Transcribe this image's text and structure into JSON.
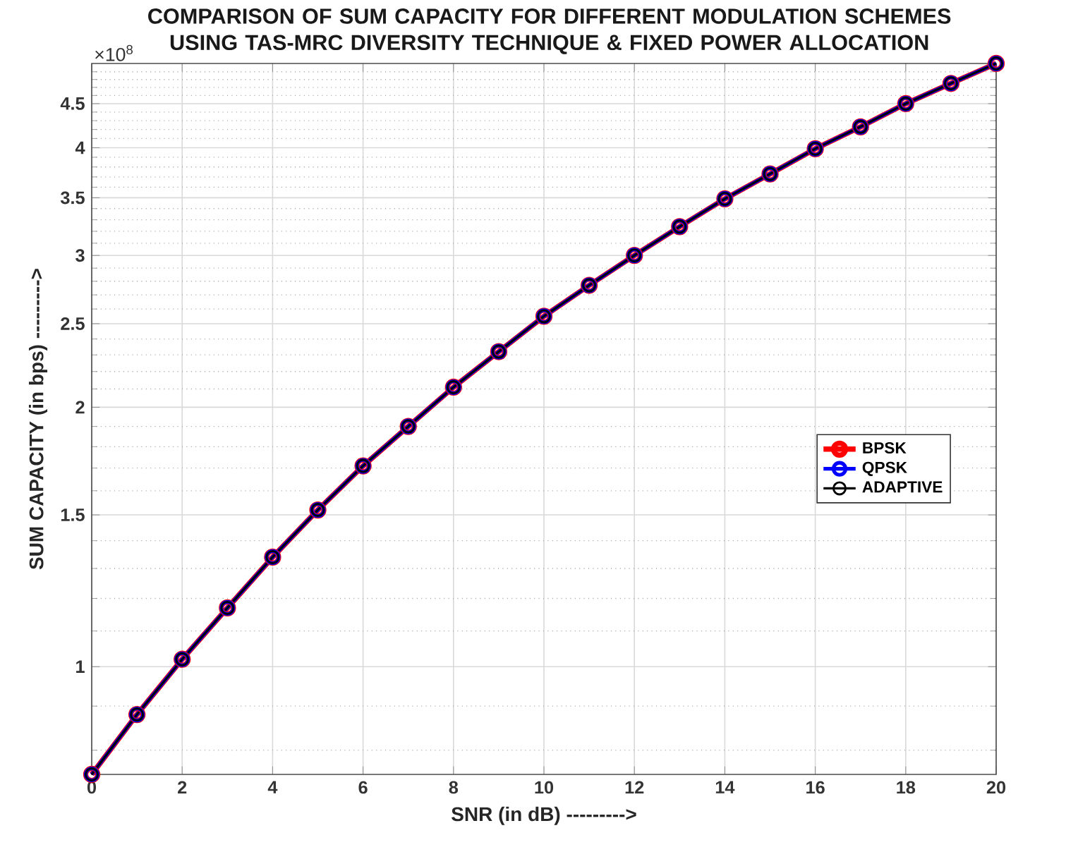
{
  "chart_data": {
    "type": "line",
    "title": "COMPARISON OF SUM CAPACITY FOR DIFFERENT MODULATION SCHEMES USING TAS-MRC DIVERSITY TECHNIQUE & FIXED POWER ALLOCATION",
    "xlabel": "SNR (in dB) --------->",
    "ylabel": "SUM CAPACITY (in bps) --------->",
    "annotations": [
      "×10$^{8}$"
    ],
    "x": [
      0,
      1,
      2,
      3,
      4,
      5,
      6,
      7,
      8,
      9,
      10,
      11,
      12,
      13,
      14,
      15,
      16,
      17,
      18,
      19,
      20
    ],
    "series": [
      {
        "name": "BPSK",
        "color": "#ff0000",
        "values": [
          0.75,
          0.88,
          1.02,
          1.17,
          1.34,
          1.52,
          1.71,
          1.9,
          2.11,
          2.32,
          2.55,
          2.77,
          3.0,
          3.24,
          3.49,
          3.73,
          3.99,
          4.23,
          4.5,
          4.75,
          5.01
        ]
      },
      {
        "name": "QPSK",
        "color": "#0000ff",
        "values": [
          0.75,
          0.88,
          1.02,
          1.17,
          1.34,
          1.52,
          1.71,
          1.9,
          2.11,
          2.32,
          2.55,
          2.77,
          3.0,
          3.24,
          3.49,
          3.73,
          3.99,
          4.23,
          4.5,
          4.75,
          5.01
        ]
      },
      {
        "name": "ADAPTIVE",
        "color": "#000000",
        "values": [
          0.75,
          0.88,
          1.02,
          1.17,
          1.34,
          1.52,
          1.71,
          1.9,
          2.11,
          2.32,
          2.55,
          2.77,
          3.0,
          3.24,
          3.49,
          3.73,
          3.99,
          4.23,
          4.5,
          4.75,
          5.01
        ]
      }
    ],
    "xlim": [
      0,
      20
    ],
    "xticks": [
      0,
      2,
      4,
      6,
      8,
      10,
      12,
      14,
      16,
      18,
      20
    ],
    "ylim": [
      0.75,
      5.01
    ],
    "yticks": [
      1,
      1.5,
      2,
      2.5,
      3,
      3.5,
      4,
      4.5
    ],
    "log": "y",
    "grid": true,
    "legend": "right",
    "marker": "circle",
    "line_style": "solid"
  }
}
